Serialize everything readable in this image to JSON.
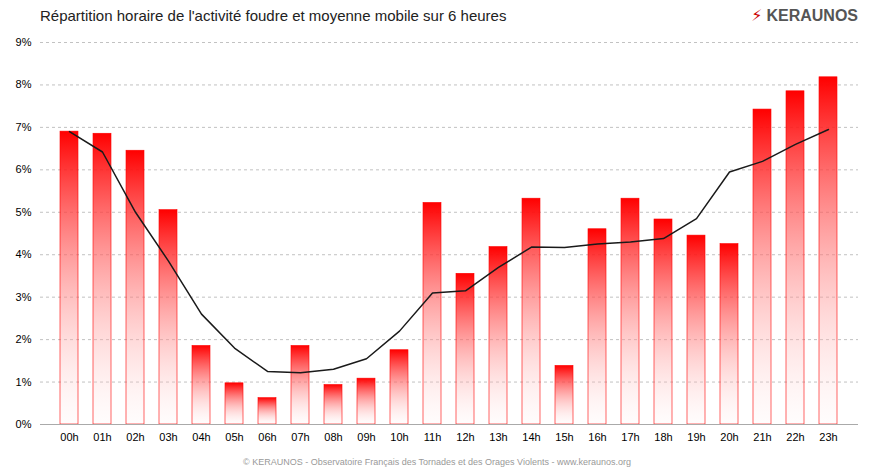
{
  "chart_data": {
    "type": "bar",
    "title": "Répartition horaire de l'activité foudre et moyenne mobile sur 6 heures",
    "categories": [
      "00h",
      "01h",
      "02h",
      "03h",
      "04h",
      "05h",
      "06h",
      "07h",
      "08h",
      "09h",
      "10h",
      "11h",
      "12h",
      "13h",
      "14h",
      "15h",
      "16h",
      "17h",
      "18h",
      "19h",
      "20h",
      "21h",
      "22h",
      "23h"
    ],
    "series": [
      {
        "type": "bar",
        "color": "#ff0000",
        "values": [
          6.9,
          6.85,
          6.45,
          5.05,
          1.85,
          0.97,
          0.62,
          1.85,
          0.93,
          1.08,
          1.75,
          5.22,
          3.55,
          4.18,
          5.32,
          1.38,
          4.6,
          5.32,
          4.83,
          4.45,
          4.25,
          7.42,
          7.85,
          8.18
        ]
      },
      {
        "type": "line",
        "color": "#1a1a1a",
        "values": [
          6.9,
          6.42,
          5.0,
          3.85,
          2.6,
          1.8,
          1.25,
          1.22,
          1.3,
          1.55,
          2.2,
          3.1,
          3.15,
          3.7,
          4.18,
          4.17,
          4.25,
          4.3,
          4.38,
          4.85,
          5.95,
          6.2,
          6.6,
          6.95
        ]
      }
    ],
    "ylim": [
      0,
      9
    ],
    "yticks": [
      {
        "value": 0,
        "label": "0%"
      },
      {
        "value": 1,
        "label": "1%"
      },
      {
        "value": 2,
        "label": "2%"
      },
      {
        "value": 3,
        "label": "3%"
      },
      {
        "value": 4,
        "label": "4%"
      },
      {
        "value": 5,
        "label": "5%"
      },
      {
        "value": 6,
        "label": "6%"
      },
      {
        "value": 7,
        "label": "7%"
      },
      {
        "value": 8,
        "label": "8%"
      },
      {
        "value": 9,
        "label": "9%"
      }
    ],
    "grid": true,
    "annotations": [
      {
        "text": "⚡",
        "color": "#cc0000"
      },
      {
        "text": "KERAUNOS",
        "color": "#555555"
      }
    ],
    "footer": "© KERAUNOS - Observatoire Français des Tornades et des Orages Violents - www.keraunos.org"
  }
}
